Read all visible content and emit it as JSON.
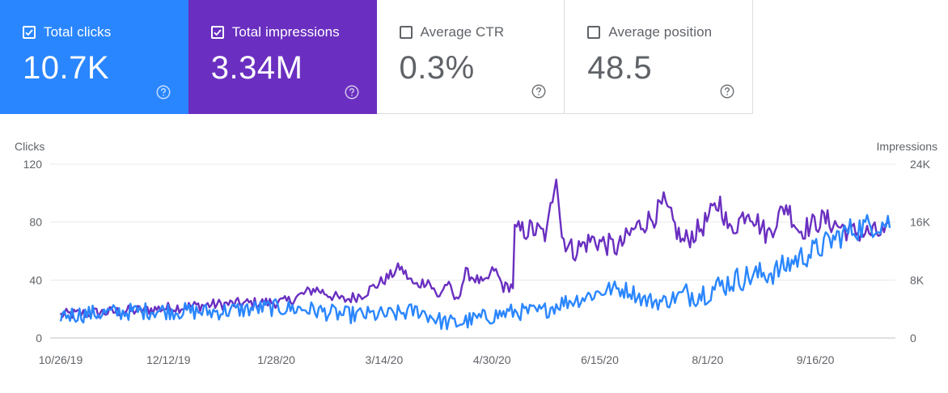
{
  "metrics": [
    {
      "label": "Total clicks",
      "value": "10.7K",
      "checked": true,
      "color": "#2a86ff"
    },
    {
      "label": "Total impressions",
      "value": "3.34M",
      "checked": true,
      "color": "#6a2fc0"
    },
    {
      "label": "Average CTR",
      "value": "0.3%",
      "checked": false,
      "color": "#ffffff"
    },
    {
      "label": "Average position",
      "value": "48.5",
      "checked": false,
      "color": "#ffffff"
    }
  ],
  "chart_data": {
    "type": "line",
    "left_axis_title": "Clicks",
    "right_axis_title": "Impressions",
    "left_ticks": [
      "0",
      "40",
      "80",
      "120"
    ],
    "right_ticks": [
      "0",
      "8K",
      "16K",
      "24K"
    ],
    "left_ylim": [
      0,
      120
    ],
    "right_ylim": [
      0,
      24000
    ],
    "x_tick_labels": [
      "10/26/19",
      "12/12/19",
      "1/28/20",
      "3/14/20",
      "4/30/20",
      "6/15/20",
      "8/1/20",
      "9/16/20"
    ],
    "grid": true,
    "series": [
      {
        "color": "#6a2fc0",
        "axis": "right",
        "anchors": [
          [
            0,
            3200
          ],
          [
            40,
            3800
          ],
          [
            80,
            4600
          ],
          [
            120,
            5000
          ],
          [
            135,
            6800
          ],
          [
            150,
            5200
          ],
          [
            160,
            6000
          ],
          [
            175,
            8600
          ],
          [
            180,
            9800
          ],
          [
            188,
            7200
          ],
          [
            195,
            8000
          ],
          [
            200,
            5600
          ],
          [
            205,
            7600
          ],
          [
            210,
            5000
          ],
          [
            215,
            9000
          ],
          [
            220,
            8200
          ],
          [
            225,
            7400
          ],
          [
            230,
            9600
          ],
          [
            235,
            7000
          ],
          [
            240,
            7200
          ],
          [
            241,
            14600
          ],
          [
            250,
            15000
          ],
          [
            258,
            14200
          ],
          [
            263,
            23200
          ],
          [
            266,
            14000
          ],
          [
            272,
            12000
          ],
          [
            282,
            13600
          ],
          [
            296,
            12400
          ],
          [
            305,
            15200
          ],
          [
            315,
            16800
          ],
          [
            320,
            18600
          ],
          [
            330,
            13200
          ],
          [
            340,
            15200
          ],
          [
            350,
            18800
          ],
          [
            355,
            14600
          ],
          [
            365,
            17800
          ],
          [
            375,
            14200
          ],
          [
            385,
            18400
          ],
          [
            392,
            14800
          ],
          [
            405,
            16400
          ],
          [
            420,
            14600
          ],
          [
            440,
            14400
          ]
        ]
      },
      {
        "color": "#2a86ff",
        "axis": "left",
        "anchors": [
          [
            0,
            16
          ],
          [
            20,
            17
          ],
          [
            50,
            19
          ],
          [
            80,
            18
          ],
          [
            110,
            21
          ],
          [
            130,
            20
          ],
          [
            150,
            16
          ],
          [
            175,
            16
          ],
          [
            190,
            19
          ],
          [
            203,
            11
          ],
          [
            210,
            10
          ],
          [
            220,
            13
          ],
          [
            240,
            18
          ],
          [
            255,
            18
          ],
          [
            265,
            24
          ],
          [
            275,
            27
          ],
          [
            282,
            30
          ],
          [
            292,
            34
          ],
          [
            302,
            33
          ],
          [
            310,
            26
          ],
          [
            320,
            25
          ],
          [
            330,
            30
          ],
          [
            340,
            31
          ],
          [
            360,
            41
          ],
          [
            380,
            46
          ],
          [
            390,
            54
          ],
          [
            400,
            60
          ],
          [
            410,
            68
          ],
          [
            420,
            75
          ],
          [
            430,
            78
          ],
          [
            440,
            80
          ]
        ]
      }
    ]
  }
}
